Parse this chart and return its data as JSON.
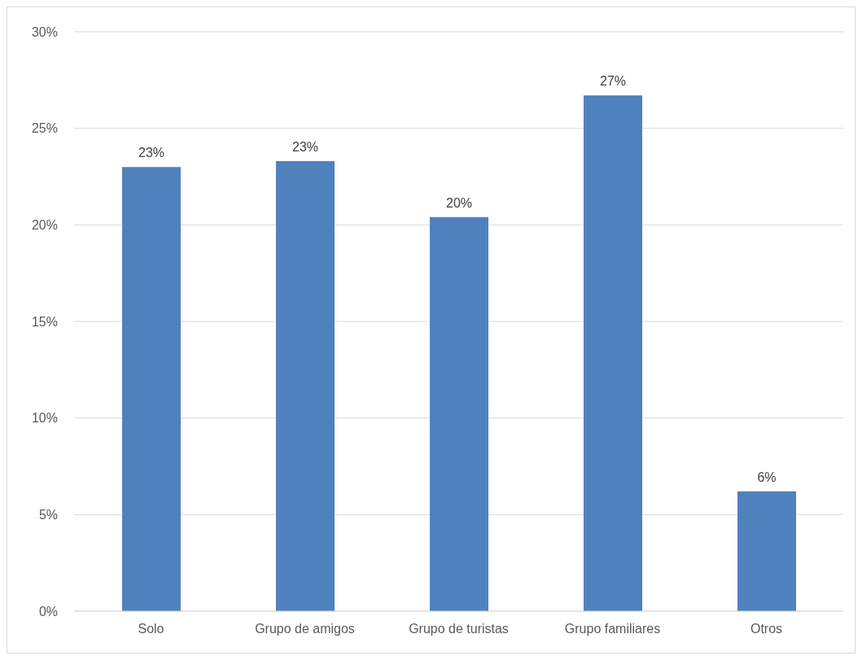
{
  "chart_data": {
    "type": "bar",
    "categories": [
      "Solo",
      "Grupo de amigos",
      "Grupo de turistas",
      "Grupo familiares",
      "Otros"
    ],
    "values": [
      23.0,
      23.3,
      20.4,
      26.7,
      6.2
    ],
    "value_labels": [
      "23%",
      "23%",
      "20%",
      "27%",
      "6%"
    ],
    "color": "#4f81bd",
    "ylim": [
      0,
      30
    ],
    "yticks": [
      {
        "value": 0,
        "label": "0%"
      },
      {
        "value": 5,
        "label": "5%"
      },
      {
        "value": 10,
        "label": "10%"
      },
      {
        "value": 15,
        "label": "15%"
      },
      {
        "value": 20,
        "label": "20%"
      },
      {
        "value": 25,
        "label": "25%"
      },
      {
        "value": 30,
        "label": "30%"
      }
    ],
    "grid": "y",
    "legend": false
  }
}
